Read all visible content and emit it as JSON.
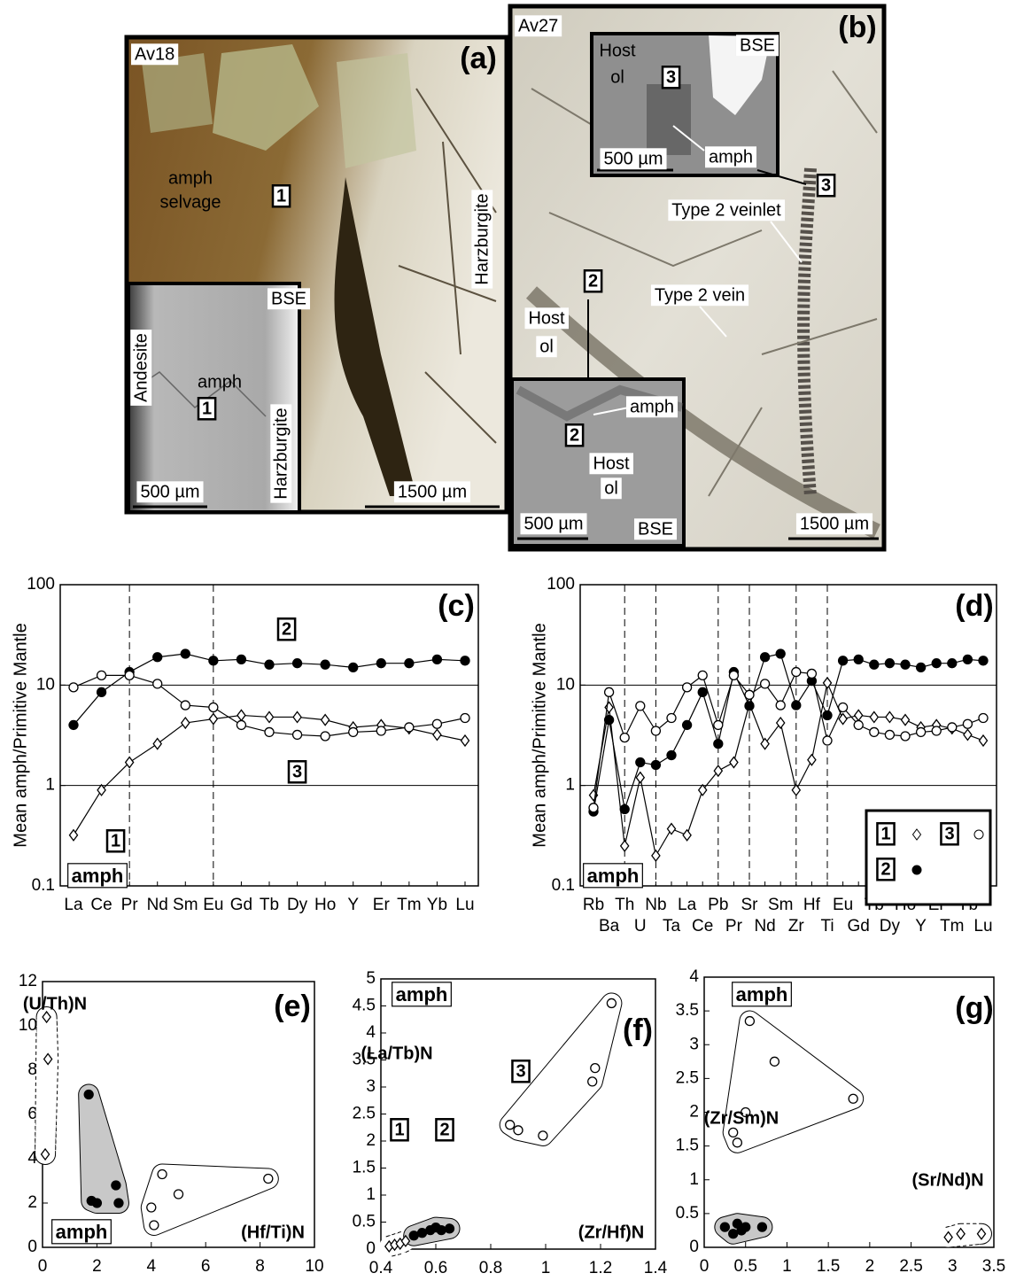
{
  "photos": {
    "a": [
      "Av18",
      "(a)",
      "amph",
      "selvage",
      "1",
      "Harzburgite",
      "BSE",
      "Andesite",
      "amph",
      "1",
      "Harzburgite",
      "500 µm",
      "1500 µm"
    ],
    "b": [
      "Av27",
      "(b)",
      "Host",
      "ol",
      "3",
      "BSE",
      "500 µm",
      "amph",
      "3",
      "Type 2 veinlet",
      "2",
      "Type 2 vein",
      "Host",
      "ol",
      "amph",
      "2",
      "Host",
      "ol",
      "500 µm",
      "BSE",
      "1500 µm"
    ]
  },
  "chart_data": [
    {
      "type": "line",
      "panel": "(c)",
      "tag": "amph",
      "ylabel": "Mean amph/Primitive Mantle",
      "log_y": true,
      "grid": true,
      "ylim": [
        0.1,
        100
      ],
      "yticks": [
        0.1,
        1,
        10,
        100
      ],
      "vlines": [
        "Pr",
        "Eu"
      ],
      "label_rows": 1,
      "categories": [
        "La",
        "Ce",
        "Pr",
        "Nd",
        "Sm",
        "Eu",
        "Gd",
        "Tb",
        "Dy",
        "Ho",
        "Y",
        "Er",
        "Tm",
        "Yb",
        "Lu"
      ],
      "series": [
        {
          "name": "1",
          "marker": "diamond",
          "filled": false,
          "color": "#000000",
          "values": [
            0.32,
            0.9,
            1.7,
            2.6,
            4.2,
            4.6,
            5.0,
            4.8,
            4.8,
            4.5,
            3.8,
            4.0,
            3.7,
            3.2,
            2.8
          ]
        },
        {
          "name": "2",
          "marker": "circle",
          "filled": true,
          "color": "#000000",
          "values": [
            4.0,
            8.5,
            13.5,
            19,
            20.5,
            17.5,
            18,
            16,
            16.5,
            16,
            15,
            16.5,
            16.5,
            18,
            17.5
          ]
        },
        {
          "name": "3",
          "marker": "circle",
          "filled": false,
          "color": "#000000",
          "values": [
            9.5,
            12.5,
            12.5,
            10.3,
            6.3,
            6.0,
            4.0,
            3.4,
            3.2,
            3.1,
            3.4,
            3.5,
            3.8,
            4.1,
            4.7
          ]
        }
      ]
    },
    {
      "type": "line",
      "panel": "(d)",
      "tag": "amph",
      "ylabel": "Mean amph/Primitive Mantle",
      "log_y": true,
      "grid": true,
      "ylim": [
        0.1,
        100
      ],
      "yticks": [
        0.1,
        1,
        10,
        100
      ],
      "vlines": [
        "Th",
        "Nb",
        "Pb",
        "Sr",
        "Zr",
        "Ti"
      ],
      "label_rows": 2,
      "categories": [
        "Rb",
        "Ba",
        "Th",
        "U",
        "Nb",
        "Ta",
        "La",
        "Ce",
        "Pb",
        "Pr",
        "Sr",
        "Nd",
        "Sm",
        "Zr",
        "Hf",
        "Ti",
        "Eu",
        "Gd",
        "Tb",
        "Dy",
        "Ho",
        "Y",
        "Er",
        "Tm",
        "Yb",
        "Lu"
      ],
      "series": [
        {
          "name": "1",
          "marker": "diamond",
          "filled": false,
          "color": "#000000",
          "values": [
            0.8,
            6,
            0.25,
            1.2,
            0.2,
            0.37,
            0.32,
            0.9,
            1.4,
            1.7,
            6.5,
            2.6,
            4.2,
            0.9,
            1.8,
            10.5,
            4.6,
            5.0,
            4.8,
            4.8,
            4.5,
            3.8,
            4.0,
            3.7,
            3.2,
            2.8
          ]
        },
        {
          "name": "2",
          "marker": "circle",
          "filled": true,
          "color": "#000000",
          "values": [
            0.55,
            4.5,
            0.58,
            1.7,
            1.6,
            2.0,
            4.0,
            8.5,
            2.6,
            13.5,
            6.2,
            19,
            20.5,
            6.3,
            11,
            5.0,
            17.5,
            18,
            16,
            16.5,
            16,
            15,
            16.5,
            16.5,
            18,
            17.5
          ]
        },
        {
          "name": "3",
          "marker": "circle",
          "filled": false,
          "color": "#000000",
          "values": [
            0.6,
            8.5,
            3.0,
            6.2,
            3.5,
            4.7,
            9.5,
            12.5,
            4.0,
            12.5,
            8.0,
            10.3,
            6.3,
            13.5,
            13,
            2.8,
            6.0,
            4.0,
            3.4,
            3.2,
            3.1,
            3.4,
            3.5,
            3.8,
            4.1,
            4.7
          ]
        }
      ]
    },
    {
      "type": "scatter",
      "panel": "(e)",
      "tag": "amph",
      "xlabel": "(Hf/Ti)N",
      "ylabel": "(U/Th)N",
      "xlim": [
        0,
        10
      ],
      "xticks": [
        0,
        2,
        4,
        6,
        8,
        10
      ],
      "ylim": [
        0,
        12
      ],
      "yticks": [
        0,
        2,
        4,
        6,
        8,
        10,
        12
      ],
      "series": [
        {
          "marker": "diamond",
          "filled": false,
          "color": "#000000",
          "envelope_fill": "#ffffff",
          "envelope_dashed": true,
          "x": [
            0.15,
            0.2,
            0.1
          ],
          "y": [
            10.4,
            8.5,
            4.2
          ]
        },
        {
          "marker": "circle",
          "filled": true,
          "color": "#000000",
          "envelope_fill": "#c8c8c8",
          "envelope_dashed": false,
          "x": [
            1.7,
            1.8,
            2.0,
            2.7,
            2.8
          ],
          "y": [
            6.9,
            2.1,
            2.0,
            2.8,
            2.0
          ]
        },
        {
          "marker": "circle",
          "filled": false,
          "color": "#000000",
          "envelope_fill": "#ffffff",
          "envelope_dashed": false,
          "x": [
            4.0,
            4.1,
            4.4,
            5.0,
            8.3
          ],
          "y": [
            1.8,
            1.0,
            3.3,
            2.4,
            3.1
          ]
        }
      ]
    },
    {
      "type": "scatter",
      "panel": "(f)",
      "tag": "amph",
      "xlabel": "(Zr/Hf)N",
      "ylabel": "(La/Tb)N",
      "xlim": [
        0.4,
        1.4
      ],
      "xticks": [
        0.4,
        0.6,
        0.8,
        1,
        1.2,
        1.4
      ],
      "ylim": [
        0,
        5
      ],
      "yticks": [
        0,
        0.5,
        1,
        1.5,
        2,
        2.5,
        3,
        3.5,
        4,
        4.5,
        5
      ],
      "series": [
        {
          "name": "1",
          "marker": "diamond",
          "filled": false,
          "color": "#000000",
          "envelope_fill": "#ffffff",
          "envelope_dashed": true,
          "x": [
            0.43,
            0.45,
            0.47,
            0.49
          ],
          "y": [
            0.05,
            0.08,
            0.1,
            0.15
          ]
        },
        {
          "name": "2",
          "marker": "circle",
          "filled": true,
          "color": "#000000",
          "envelope_fill": "#c8c8c8",
          "envelope_dashed": false,
          "x": [
            0.52,
            0.55,
            0.58,
            0.6,
            0.62,
            0.65
          ],
          "y": [
            0.25,
            0.3,
            0.35,
            0.4,
            0.35,
            0.38
          ]
        },
        {
          "name": "3",
          "marker": "circle",
          "filled": false,
          "color": "#000000",
          "envelope_fill": "#ffffff",
          "envelope_dashed": false,
          "x": [
            0.87,
            0.9,
            0.99,
            1.17,
            1.18,
            1.24
          ],
          "y": [
            2.3,
            2.2,
            2.1,
            3.1,
            3.35,
            4.55
          ]
        }
      ]
    },
    {
      "type": "scatter",
      "panel": "(g)",
      "tag": "amph",
      "xlabel": "(Sr/Nd)N",
      "ylabel": "(Zr/Sm)N",
      "xlim": [
        0,
        3.5
      ],
      "xticks": [
        0,
        0.5,
        1,
        1.5,
        2,
        2.5,
        3,
        3.5
      ],
      "ylim": [
        0,
        4
      ],
      "yticks": [
        0,
        0.5,
        1,
        1.5,
        2,
        2.5,
        3,
        3.5,
        4
      ],
      "series": [
        {
          "marker": "diamond",
          "filled": false,
          "color": "#000000",
          "envelope_fill": "#ffffff",
          "envelope_dashed": true,
          "x": [
            2.95,
            3.1,
            3.35
          ],
          "y": [
            0.15,
            0.2,
            0.2
          ]
        },
        {
          "marker": "circle",
          "filled": true,
          "color": "#000000",
          "envelope_fill": "#c8c8c8",
          "envelope_dashed": false,
          "x": [
            0.25,
            0.35,
            0.4,
            0.45,
            0.5,
            0.7
          ],
          "y": [
            0.3,
            0.2,
            0.35,
            0.25,
            0.3,
            0.3
          ]
        },
        {
          "marker": "circle",
          "filled": false,
          "color": "#000000",
          "envelope_fill": "#ffffff",
          "envelope_dashed": false,
          "x": [
            0.55,
            0.85,
            0.5,
            0.35,
            0.4,
            1.8
          ],
          "y": [
            3.35,
            2.75,
            2.0,
            1.7,
            1.55,
            2.2
          ]
        }
      ]
    }
  ]
}
